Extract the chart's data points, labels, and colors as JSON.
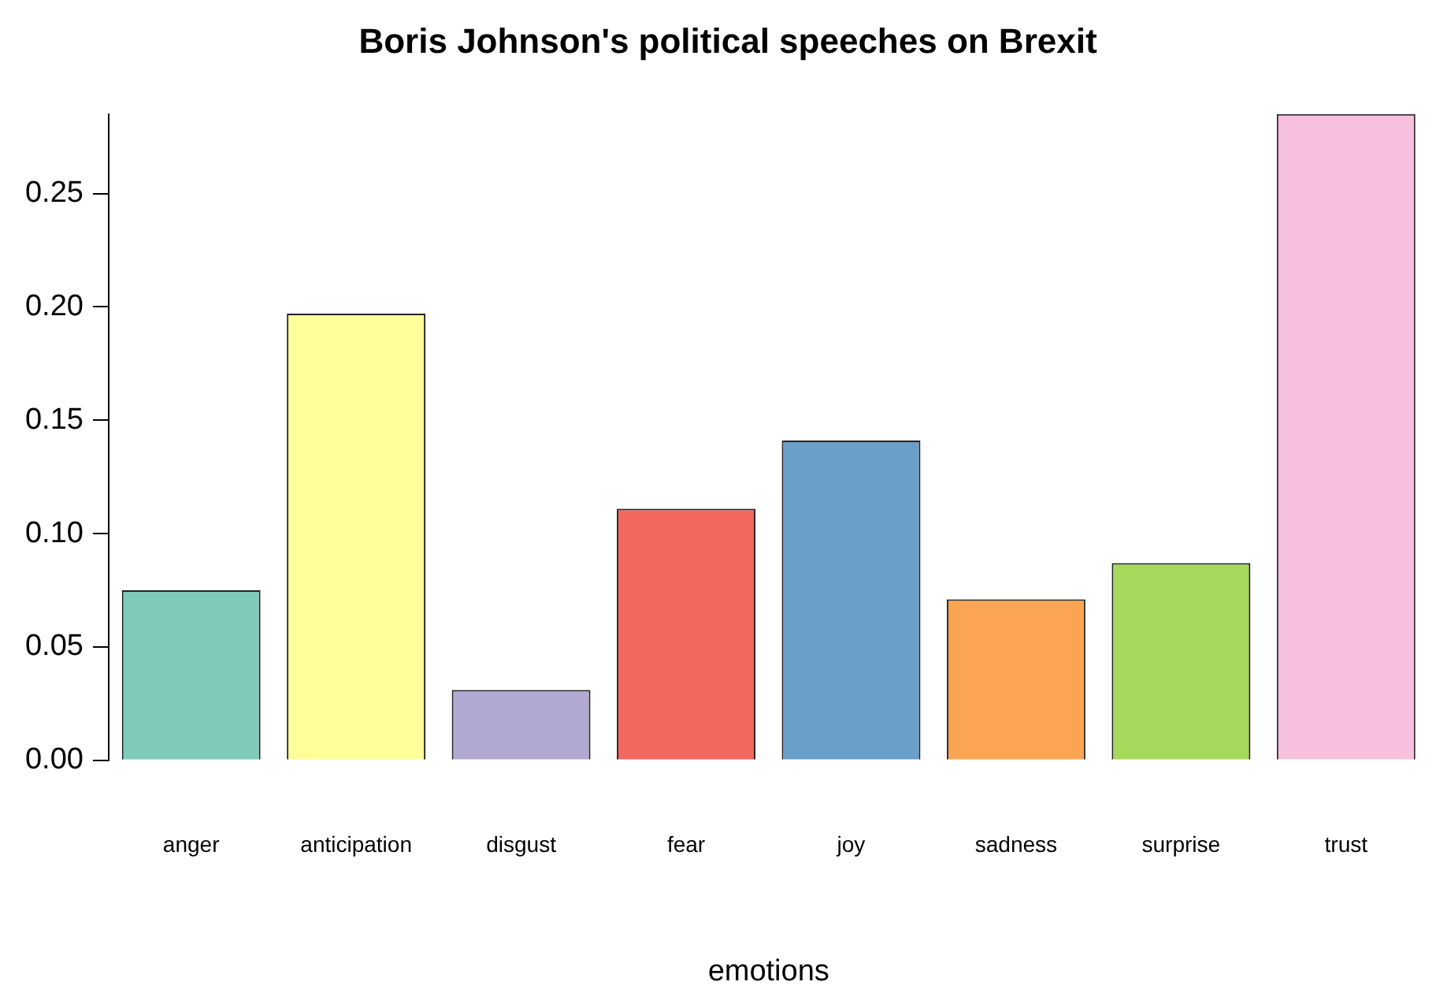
{
  "chart_data": {
    "type": "bar",
    "title": "Boris Johnson's political speeches on Brexit",
    "xlabel": "emotions",
    "categories": [
      "anger",
      "anticipation",
      "disgust",
      "fear",
      "joy",
      "sadness",
      "surprise",
      "trust"
    ],
    "values": [
      0.075,
      0.197,
      0.031,
      0.111,
      0.141,
      0.071,
      0.087,
      0.285
    ],
    "colors": [
      "#7fcbbb",
      "#ffff99",
      "#b1a9d2",
      "#f4675e",
      "#6a9fc9",
      "#fba451",
      "#a6d85b",
      "#f8c0df"
    ],
    "ylim": [
      0,
      0.285
    ],
    "yticks": [
      {
        "value": 0,
        "label": "0.00"
      },
      {
        "value": 0.05,
        "label": "0.05"
      },
      {
        "value": 0.1,
        "label": "0.10"
      },
      {
        "value": 0.15,
        "label": "0.15"
      },
      {
        "value": 0.2,
        "label": "0.20"
      },
      {
        "value": 0.25,
        "label": "0.25"
      }
    ],
    "grid": false,
    "legend": false
  }
}
